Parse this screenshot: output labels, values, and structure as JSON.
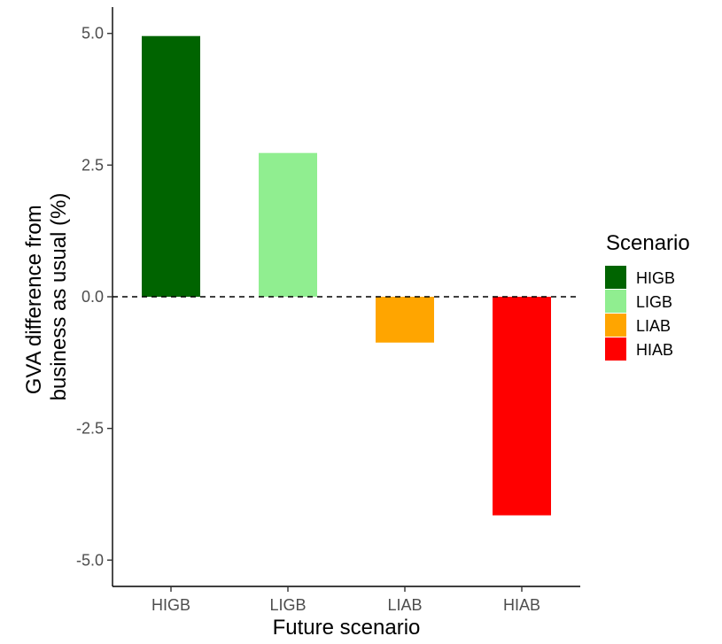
{
  "chart_data": {
    "type": "bar",
    "categories": [
      "HIGB",
      "LIGB",
      "LIAB",
      "HIAB"
    ],
    "values": [
      4.95,
      2.73,
      -0.87,
      -4.15
    ],
    "colors": [
      "#006400",
      "#90EE90",
      "#FFA500",
      "#FF0000"
    ],
    "xlabel": "Future scenario",
    "ylabel_lines": [
      "GVA difference from",
      "business as usual (%)"
    ],
    "ylim": [
      -5.5,
      5.5
    ],
    "yticks": [
      -5.0,
      -2.5,
      0.0,
      2.5,
      5.0
    ],
    "ytick_labels": [
      "-5.0",
      "-2.5",
      "0.0",
      "2.5",
      "5.0"
    ],
    "reference_line": {
      "y": 0,
      "style": "dashed"
    },
    "grid": false,
    "legend": {
      "title": "Scenario",
      "placement": "right",
      "entries": [
        "HIGB",
        "LIGB",
        "LIAB",
        "HIAB"
      ]
    }
  }
}
